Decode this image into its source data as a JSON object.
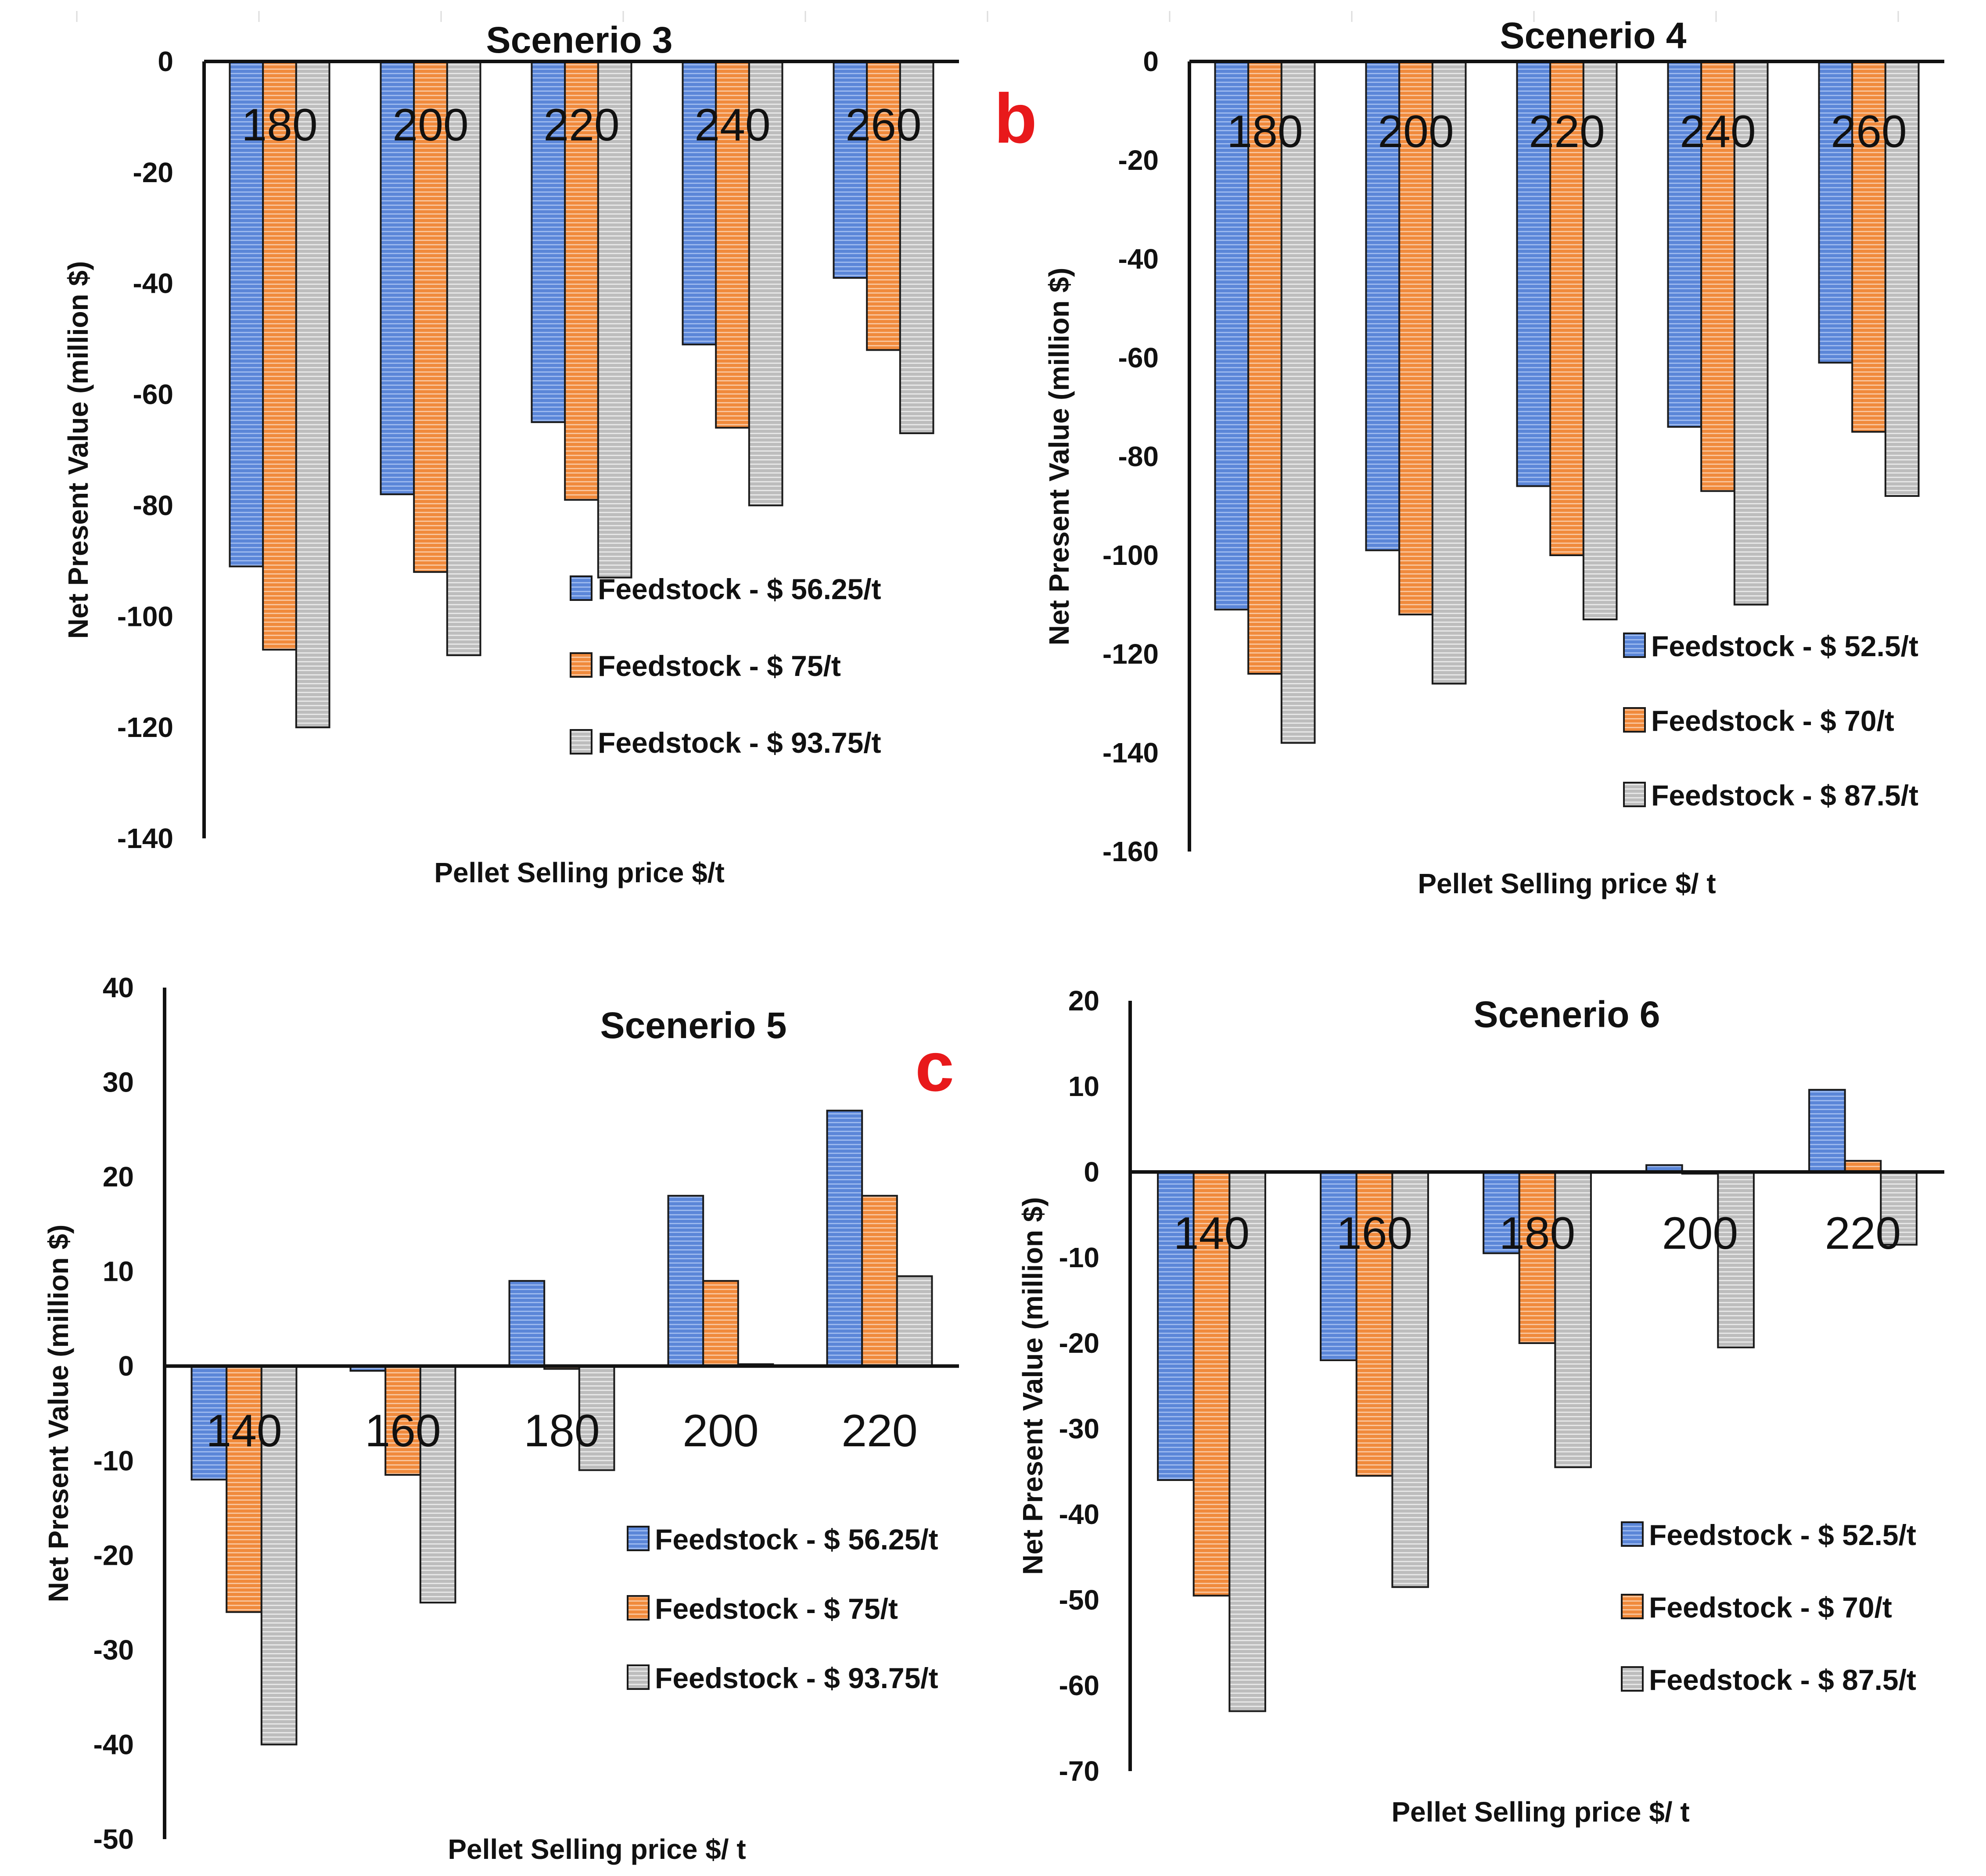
{
  "panel_letters": [
    "b",
    "c"
  ],
  "panel_letter_color": "#e8191b",
  "series_colors": [
    "#5b86d8",
    "#f08a3c",
    "#bdbdbd"
  ],
  "chart_data": [
    {
      "type": "bar",
      "title": "Scenerio 3",
      "xlabel": "Pellet Selling price  $/t",
      "ylabel": "Net Present Value (million $)",
      "ylim": [
        -140,
        0
      ],
      "yticks": [
        0,
        -20,
        -40,
        -60,
        -80,
        -100,
        -120,
        -140
      ],
      "categories": [
        "180",
        "200",
        "220",
        "240",
        "260"
      ],
      "series": [
        {
          "name": "Feedstock -  $ 56.25/t",
          "values": [
            -91,
            -78,
            -65,
            -51,
            -39
          ]
        },
        {
          "name": "Feedstock -  $ 75/t",
          "values": [
            -106,
            -92,
            -79,
            -66,
            -52
          ]
        },
        {
          "name": "Feedstock -  $ 93.75/t",
          "values": [
            -120,
            -107,
            -93,
            -80,
            -67
          ]
        }
      ]
    },
    {
      "type": "bar",
      "title": "Scenerio 4",
      "xlabel": "Pellet Selling price  $/ t",
      "ylabel": "Net Present Value (million $)",
      "ylim": [
        -160,
        0
      ],
      "yticks": [
        0,
        -20,
        -40,
        -60,
        -80,
        -100,
        -120,
        -140,
        -160
      ],
      "categories": [
        "180",
        "200",
        "220",
        "240",
        "260"
      ],
      "series": [
        {
          "name": "Feedstock -  $ 52.5/t",
          "values": [
            -111,
            -99,
            -86,
            -74,
            -61
          ]
        },
        {
          "name": "Feedstock -  $ 70/t",
          "values": [
            -124,
            -112,
            -100,
            -87,
            -75
          ]
        },
        {
          "name": "Feedstock -  $ 87.5/t",
          "values": [
            -138,
            -126,
            -113,
            -110,
            -88
          ]
        }
      ]
    },
    {
      "type": "bar",
      "title": "Scenerio 5",
      "xlabel": "Pellet Selling price  $/ t",
      "ylabel": "Net Present Value (million $)",
      "ylim": [
        -50,
        40
      ],
      "yticks": [
        40,
        30,
        20,
        10,
        0,
        -10,
        -20,
        -30,
        -40,
        -50
      ],
      "categories": [
        "140",
        "160",
        "180",
        "200",
        "220"
      ],
      "series": [
        {
          "name": "Feedstock -  $ 56.25/t",
          "values": [
            -12,
            -0.5,
            9,
            18,
            27
          ]
        },
        {
          "name": "Feedstock -  $ 75/t",
          "values": [
            -26,
            -11.5,
            -0.3,
            9,
            18
          ]
        },
        {
          "name": "Feedstock -  $ 93.75/t",
          "values": [
            -40,
            -25,
            -11,
            0.2,
            9.5
          ]
        }
      ]
    },
    {
      "type": "bar",
      "title": "Scenerio 6",
      "xlabel": "Pellet Selling price  $/ t",
      "ylabel": "Net Present Value (million $)",
      "ylim": [
        -70,
        20
      ],
      "yticks": [
        20,
        10,
        0,
        -10,
        -20,
        -30,
        -40,
        -50,
        -60,
        -70
      ],
      "categories": [
        "140",
        "160",
        "180",
        "200",
        "220"
      ],
      "series": [
        {
          "name": "Feedstock -  $ 52.5/t",
          "values": [
            -36,
            -22,
            -9.5,
            0.8,
            9.6
          ]
        },
        {
          "name": "Feedstock -  $ 70/t",
          "values": [
            -49.5,
            -35.5,
            -20,
            -0.2,
            1.3
          ]
        },
        {
          "name": "Feedstock -  $ 87.5/t",
          "values": [
            -63,
            -48.5,
            -34.5,
            -20.5,
            -8.5
          ]
        }
      ]
    }
  ]
}
